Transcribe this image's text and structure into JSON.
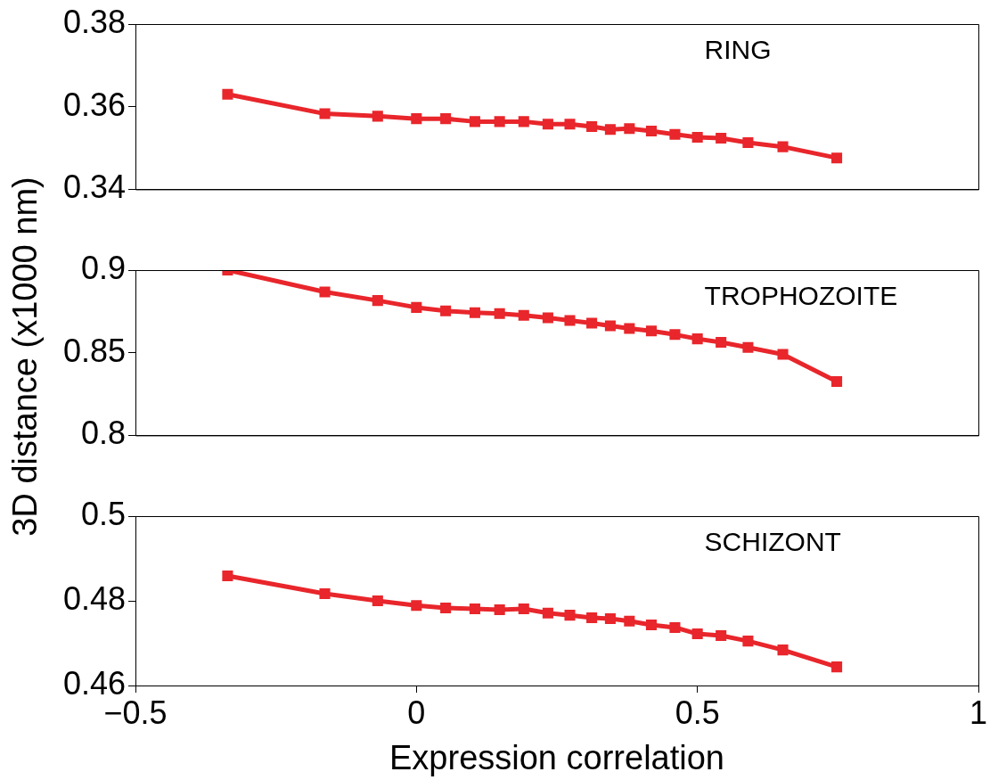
{
  "chart_data": [
    {
      "type": "line",
      "annotations": [
        "RING"
      ],
      "x": [
        -0.336,
        -0.163,
        -0.069,
        0,
        0.052,
        0.104,
        0.148,
        0.191,
        0.234,
        0.273,
        0.312,
        0.345,
        0.379,
        0.418,
        0.46,
        0.5,
        0.542,
        0.59,
        0.652,
        0.748
      ],
      "series": [
        {
          "color": "#e8262b",
          "values": [
            0.363,
            0.3583,
            0.3577,
            0.3571,
            0.3571,
            0.3564,
            0.3564,
            0.3564,
            0.3558,
            0.3558,
            0.3552,
            0.3545,
            0.3547,
            0.3541,
            0.3533,
            0.3526,
            0.3524,
            0.3513,
            0.3503,
            0.3476
          ]
        }
      ],
      "xlim": [
        -0.5,
        1
      ],
      "ylim": [
        0.34,
        0.38
      ],
      "yticks": [
        0.34,
        0.36,
        0.38
      ],
      "tick_labels": "y",
      "grid": false,
      "legend": false,
      "marker": "square",
      "line_style": "solid"
    },
    {
      "type": "line",
      "annotations": [
        "TROPHOZOITE"
      ],
      "ylabel": "3D distance (x1000 nm)",
      "x": [
        -0.336,
        -0.163,
        -0.069,
        0,
        0.052,
        0.104,
        0.148,
        0.191,
        0.234,
        0.273,
        0.312,
        0.345,
        0.379,
        0.418,
        0.46,
        0.5,
        0.542,
        0.59,
        0.652,
        0.748
      ],
      "series": [
        {
          "color": "#e8262b",
          "values": [
            0.9,
            0.8868,
            0.8816,
            0.8774,
            0.8753,
            0.8742,
            0.8737,
            0.8726,
            0.8711,
            0.8695,
            0.8679,
            0.8663,
            0.8647,
            0.8632,
            0.861,
            0.8584,
            0.8563,
            0.8532,
            0.849,
            0.8326
          ]
        }
      ],
      "xlim": [
        -0.5,
        1
      ],
      "ylim": [
        0.8,
        0.9
      ],
      "yticks": [
        0.8,
        0.85,
        0.9
      ],
      "tick_labels": "y",
      "grid": false,
      "legend": false,
      "marker": "square",
      "line_style": "solid"
    },
    {
      "type": "line",
      "annotations": [
        "SCHIZONT"
      ],
      "xlabel": "Expression correlation",
      "x": [
        -0.336,
        -0.163,
        -0.069,
        0,
        0.052,
        0.104,
        0.148,
        0.191,
        0.234,
        0.273,
        0.312,
        0.345,
        0.379,
        0.418,
        0.46,
        0.5,
        0.542,
        0.59,
        0.652,
        0.748
      ],
      "series": [
        {
          "color": "#e8262b",
          "values": [
            0.4859,
            0.4817,
            0.48,
            0.4789,
            0.4783,
            0.4781,
            0.4779,
            0.4781,
            0.4771,
            0.4766,
            0.476,
            0.4758,
            0.4752,
            0.4743,
            0.4737,
            0.4722,
            0.4718,
            0.4705,
            0.4684,
            0.4644
          ]
        }
      ],
      "xlim": [
        -0.5,
        1
      ],
      "xticks": [
        {
          "value": -0.5,
          "label": "−0.5"
        },
        0,
        0.5,
        1
      ],
      "ylim": [
        0.46,
        0.5
      ],
      "yticks": [
        0.46,
        0.48,
        0.5
      ],
      "grid": false,
      "legend": false,
      "marker": "square",
      "line_style": "solid"
    }
  ]
}
